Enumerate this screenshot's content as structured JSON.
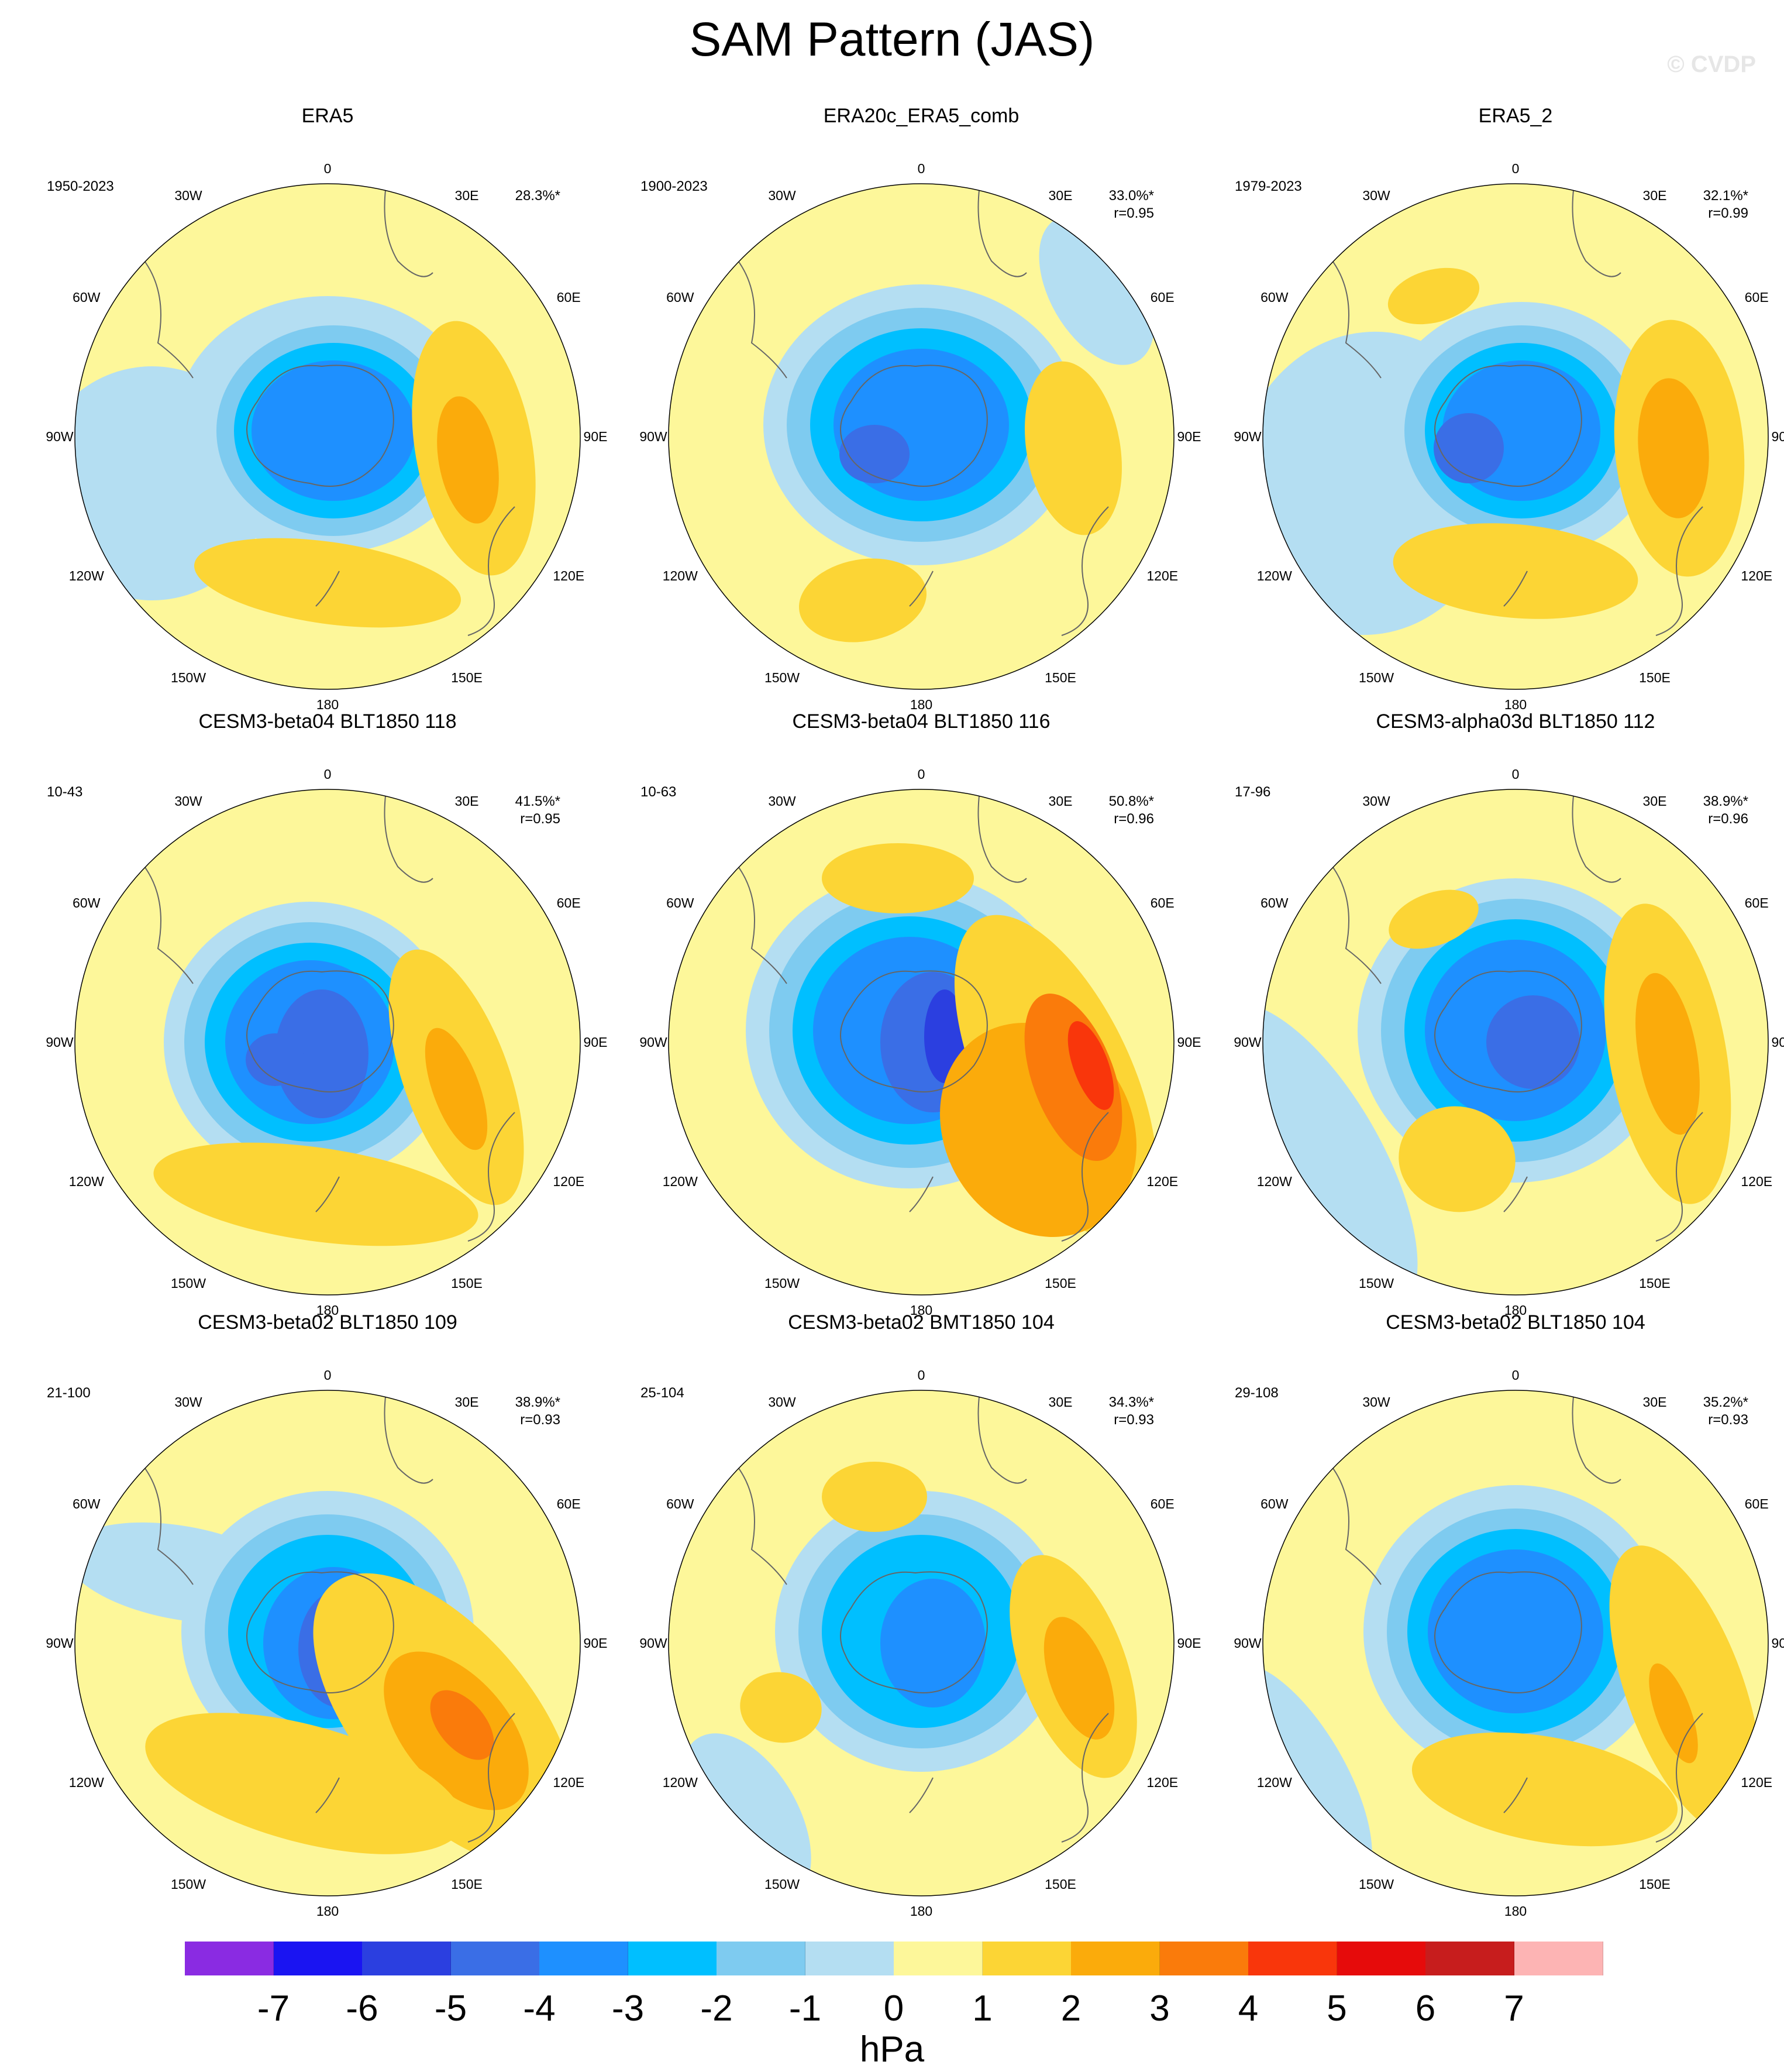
{
  "figure": {
    "title": "SAM Pattern (JAS)",
    "watermark": "© CVDP"
  },
  "lon_labels": {
    "l0": "0",
    "l30e": "30E",
    "l60e": "60E",
    "l90e": "90E",
    "l120e": "120E",
    "l150e": "150E",
    "l180": "180",
    "l150w": "150W",
    "l120w": "120W",
    "l90w": "90W",
    "l60w": "60W",
    "l30w": "30W"
  },
  "panels": [
    {
      "title": "ERA5",
      "period": "1950-2023",
      "variance": "28.3%*",
      "corr": ""
    },
    {
      "title": "ERA20c_ERA5_comb",
      "period": "1900-2023",
      "variance": "33.0%*",
      "corr": "r=0.95"
    },
    {
      "title": "ERA5_2",
      "period": "1979-2023",
      "variance": "32.1%*",
      "corr": "r=0.99"
    },
    {
      "title": "CESM3-beta04 BLT1850 118",
      "period": "10-43",
      "variance": "41.5%*",
      "corr": "r=0.95"
    },
    {
      "title": "CESM3-beta04 BLT1850 116",
      "period": "10-63",
      "variance": "50.8%*",
      "corr": "r=0.96"
    },
    {
      "title": "CESM3-alpha03d BLT1850 112",
      "period": "17-96",
      "variance": "38.9%*",
      "corr": "r=0.96"
    },
    {
      "title": "CESM3-beta02 BLT1850 109",
      "period": "21-100",
      "variance": "38.9%*",
      "corr": "r=0.93"
    },
    {
      "title": "CESM3-beta02 BMT1850 104",
      "period": "25-104",
      "variance": "34.3%*",
      "corr": "r=0.93"
    },
    {
      "title": "CESM3-beta02 BLT1850 104",
      "period": "29-108",
      "variance": "35.2%*",
      "corr": "r=0.93"
    }
  ],
  "colorbar": {
    "units": "hPa",
    "labels": [
      "-7",
      "-6",
      "-5",
      "-4",
      "-3",
      "-2",
      "-1",
      "0",
      "1",
      "2",
      "3",
      "4",
      "5",
      "6",
      "7"
    ],
    "colors": [
      "#8a2be2",
      "#1a14f2",
      "#2b3fe0",
      "#3a6ee6",
      "#1e90ff",
      "#00bfff",
      "#7ecbf0",
      "#b4def2",
      "#fdf79a",
      "#fcd535",
      "#fbab0b",
      "#fa7b0b",
      "#f9360b",
      "#e60b0b",
      "#c71d1d",
      "#fdb4b4"
    ]
  }
}
